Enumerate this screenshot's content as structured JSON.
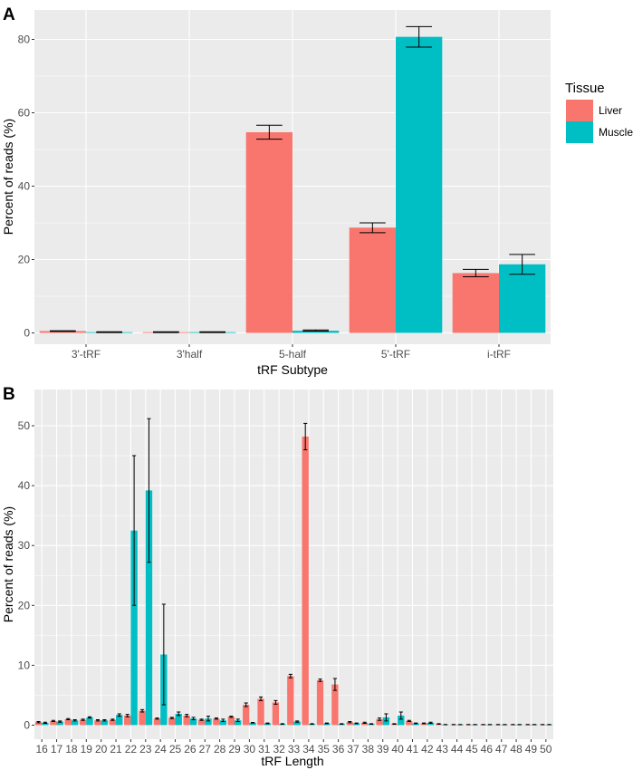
{
  "chart_data": [
    {
      "panel": "A",
      "type": "bar",
      "title": "",
      "xlabel": "tRF Subtype",
      "ylabel": "Percent of reads (%)",
      "ylim": [
        0,
        85
      ],
      "yticks": [
        0,
        20,
        40,
        60,
        80
      ],
      "categories": [
        "3'-tRF",
        "3'half",
        "5-half",
        "5'-tRF",
        "i-tRF"
      ],
      "series": [
        {
          "name": "Liver",
          "color": "#F8766D",
          "values": [
            0.5,
            0.2,
            54.7,
            28.7,
            16.3
          ],
          "err_low": [
            0.4,
            0.1,
            52.8,
            27.3,
            15.3
          ],
          "err_high": [
            0.6,
            0.3,
            56.6,
            30.0,
            17.3
          ]
        },
        {
          "name": "Muscle",
          "color": "#00BFC4",
          "values": [
            0.2,
            0.2,
            0.6,
            80.7,
            18.7
          ],
          "err_low": [
            0.1,
            0.1,
            0.5,
            77.9,
            16.0
          ],
          "err_high": [
            0.3,
            0.3,
            0.8,
            83.5,
            21.4
          ]
        }
      ],
      "legend": {
        "title": "Tissue",
        "position": "right",
        "entries": [
          "Liver",
          "Muscle"
        ]
      }
    },
    {
      "panel": "B",
      "type": "bar",
      "title": "",
      "xlabel": "tRF Length",
      "ylabel": "Percent of reads (%)",
      "ylim": [
        0,
        53.5
      ],
      "yticks": [
        0,
        10,
        20,
        30,
        40,
        50
      ],
      "categories": [
        "16",
        "17",
        "18",
        "19",
        "20",
        "21",
        "22",
        "23",
        "24",
        "25",
        "26",
        "27",
        "28",
        "29",
        "30",
        "31",
        "32",
        "33",
        "34",
        "35",
        "36",
        "37",
        "38",
        "39",
        "40",
        "41",
        "42",
        "43",
        "44",
        "45",
        "46",
        "47",
        "48",
        "49",
        "50"
      ],
      "series": [
        {
          "name": "Liver",
          "color": "#F8766D",
          "values": [
            0.5,
            0.7,
            1.0,
            0.9,
            0.8,
            0.9,
            1.6,
            2.4,
            1.1,
            1.2,
            1.6,
            0.9,
            1.1,
            1.4,
            3.4,
            4.4,
            3.8,
            8.2,
            48.2,
            7.5,
            6.8,
            0.5,
            0.4,
            1.0,
            0.2,
            0.7,
            0.3,
            0.2,
            0.1,
            0.1,
            0.1,
            0.1,
            0.1,
            0.1,
            0.1
          ],
          "err": [
            0.1,
            0.1,
            0.1,
            0.1,
            0.1,
            0.1,
            0.2,
            0.2,
            0.1,
            0.1,
            0.2,
            0.1,
            0.1,
            0.1,
            0.3,
            0.3,
            0.3,
            0.3,
            2.2,
            0.2,
            1.0,
            0.1,
            0.1,
            0.2,
            0.05,
            0.1,
            0.05,
            0.05,
            0.02,
            0.02,
            0.02,
            0.02,
            0.02,
            0.02,
            0.02
          ]
        },
        {
          "name": "Muscle",
          "color": "#00BFC4",
          "values": [
            0.4,
            0.6,
            0.8,
            1.3,
            0.8,
            1.7,
            32.5,
            39.2,
            11.8,
            1.9,
            1.1,
            1.1,
            0.8,
            0.8,
            0.4,
            0.3,
            0.2,
            0.6,
            0.2,
            0.3,
            0.2,
            0.3,
            0.2,
            1.3,
            1.6,
            0.3,
            0.4,
            0.1,
            0.1,
            0.1,
            0.1,
            0.1,
            0.1,
            0.1,
            0.1
          ],
          "err": [
            0.1,
            0.1,
            0.1,
            0.1,
            0.1,
            0.2,
            12.5,
            12.0,
            8.4,
            0.3,
            0.2,
            0.4,
            0.2,
            0.2,
            0.05,
            0.05,
            0.05,
            0.1,
            0.05,
            0.05,
            0.05,
            0.05,
            0.05,
            0.6,
            0.6,
            0.05,
            0.1,
            0.02,
            0.02,
            0.02,
            0.02,
            0.02,
            0.02,
            0.02,
            0.02
          ]
        }
      ]
    }
  ]
}
